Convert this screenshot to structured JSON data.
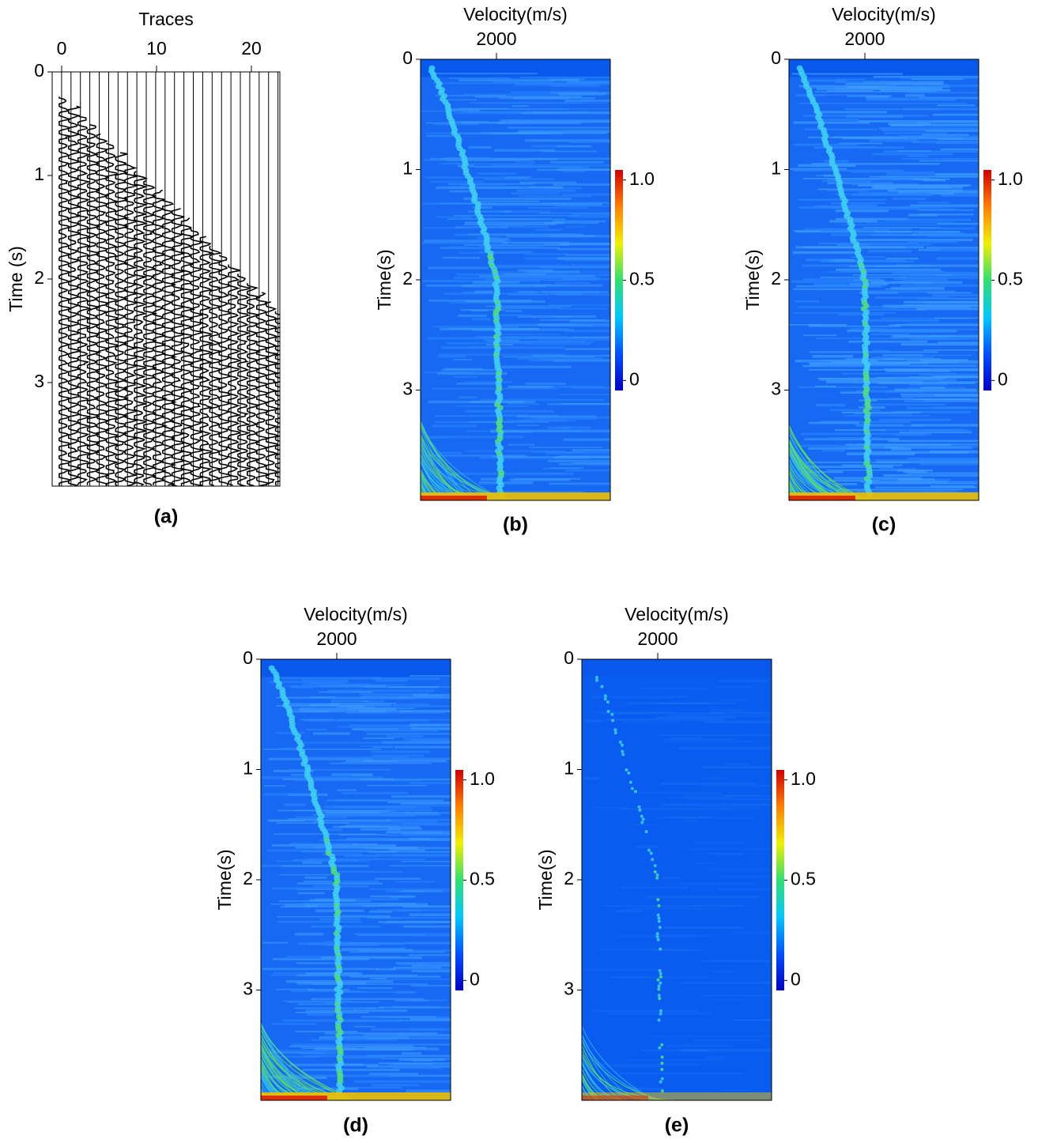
{
  "chart_data": [
    {
      "type": "wiggle",
      "xlabel": "Traces",
      "ylabel": "Time (s)",
      "caption": "(a)",
      "xlim": [
        -1,
        23
      ],
      "xticks": [
        0,
        10,
        20
      ],
      "ylim": [
        0,
        4
      ],
      "yticks": [
        0,
        1,
        2,
        3
      ]
    },
    {
      "type": "heatmap",
      "xlabel": "Velocity(m/s)",
      "ylabel": "Time(s)",
      "caption": "(b)",
      "xlim": [
        1400,
        2900
      ],
      "xticks": [
        2000
      ],
      "ylim": [
        0,
        4
      ],
      "yticks": [
        0,
        1,
        2,
        3
      ],
      "clim": [
        -0.05,
        1.05
      ],
      "cticks": [
        0,
        0.5,
        {
          "value": 1,
          "label": "1.0"
        }
      ],
      "colormap": [
        "#0000c8",
        "#0050ff",
        "#00c8ff",
        "#30e070",
        "#f0f000",
        "#ff8000",
        "#d00000"
      ]
    },
    {
      "type": "heatmap",
      "xlabel": "Velocity(m/s)",
      "ylabel": "Time(s)",
      "caption": "(c)",
      "xlim": [
        1400,
        2900
      ],
      "xticks": [
        2000
      ],
      "ylim": [
        0,
        4
      ],
      "yticks": [
        0,
        1,
        2,
        3
      ],
      "clim": [
        -0.05,
        1.05
      ],
      "cticks": [
        0,
        0.5,
        {
          "value": 1,
          "label": "1.0"
        }
      ],
      "colormap": [
        "#0000c8",
        "#0050ff",
        "#00c8ff",
        "#30e070",
        "#f0f000",
        "#ff8000",
        "#d00000"
      ]
    },
    {
      "type": "heatmap",
      "xlabel": "Velocity(m/s)",
      "ylabel": "Time(s)",
      "caption": "(d)",
      "xlim": [
        1400,
        2900
      ],
      "xticks": [
        2000
      ],
      "ylim": [
        0,
        4
      ],
      "yticks": [
        0,
        1,
        2,
        3
      ],
      "clim": [
        -0.05,
        1.05
      ],
      "cticks": [
        0,
        0.5,
        {
          "value": 1,
          "label": "1.0"
        }
      ],
      "colormap": [
        "#0000c8",
        "#0050ff",
        "#00c8ff",
        "#30e070",
        "#f0f000",
        "#ff8000",
        "#d00000"
      ]
    },
    {
      "type": "heatmap",
      "xlabel": "Velocity(m/s)",
      "ylabel": "Time(s)",
      "caption": "(e)",
      "xlim": [
        1400,
        2900
      ],
      "xticks": [
        2000
      ],
      "ylim": [
        0,
        4
      ],
      "yticks": [
        0,
        1,
        2,
        3
      ],
      "clim": [
        -0.05,
        1.05
      ],
      "cticks": [
        0,
        0.5,
        {
          "value": 1,
          "label": "1.0"
        }
      ],
      "colormap": [
        "#0000c8",
        "#0050ff",
        "#00c8ff",
        "#30e070",
        "#f0f000",
        "#ff8000",
        "#d00000"
      ]
    }
  ]
}
